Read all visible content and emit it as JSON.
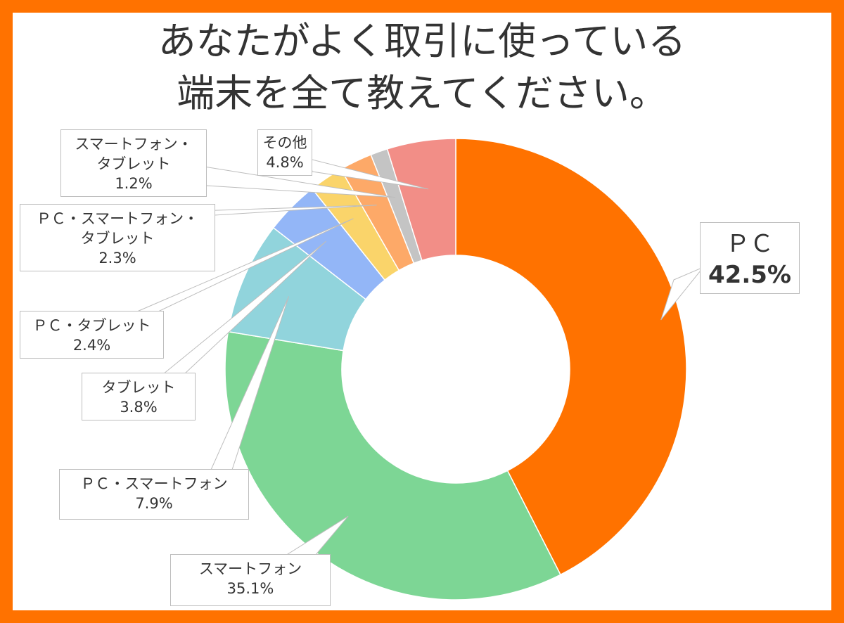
{
  "title_lines": [
    "あなたがよく取引に使っている",
    "端末を全て教えてください。"
  ],
  "chart_data": {
    "type": "pie",
    "style": "donut",
    "title": "あなたがよく取引に使っている端末を全て教えてください。",
    "slices": [
      {
        "label": "ＰＣ",
        "value": 42.5,
        "value_label": "42.5%",
        "color": "#ff7200"
      },
      {
        "label": "スマートフォン",
        "value": 35.1,
        "value_label": "35.1%",
        "color": "#7dd695"
      },
      {
        "label": "ＰＣ・スマートフォン",
        "value": 7.9,
        "value_label": "7.9%",
        "color": "#91d4dc"
      },
      {
        "label": "タブレット",
        "value": 3.8,
        "value_label": "3.8%",
        "color": "#93b6f7"
      },
      {
        "label": "ＰＣ・タブレット",
        "value": 2.4,
        "value_label": "2.4%",
        "color": "#fad46a"
      },
      {
        "label": "ＰＣ・スマートフォン・タブレット",
        "label_lines": [
          "ＰＣ・スマートフォン・",
          "タブレット"
        ],
        "value": 2.3,
        "value_label": "2.3%",
        "color": "#fda968"
      },
      {
        "label": "スマートフォン・タブレット",
        "label_lines": [
          "スマートフォン・",
          "タブレット"
        ],
        "value": 1.2,
        "value_label": "1.2%",
        "color": "#c4c4c4"
      },
      {
        "label": "その他",
        "value": 4.8,
        "value_label": "4.8%",
        "color": "#f28e87"
      }
    ]
  }
}
